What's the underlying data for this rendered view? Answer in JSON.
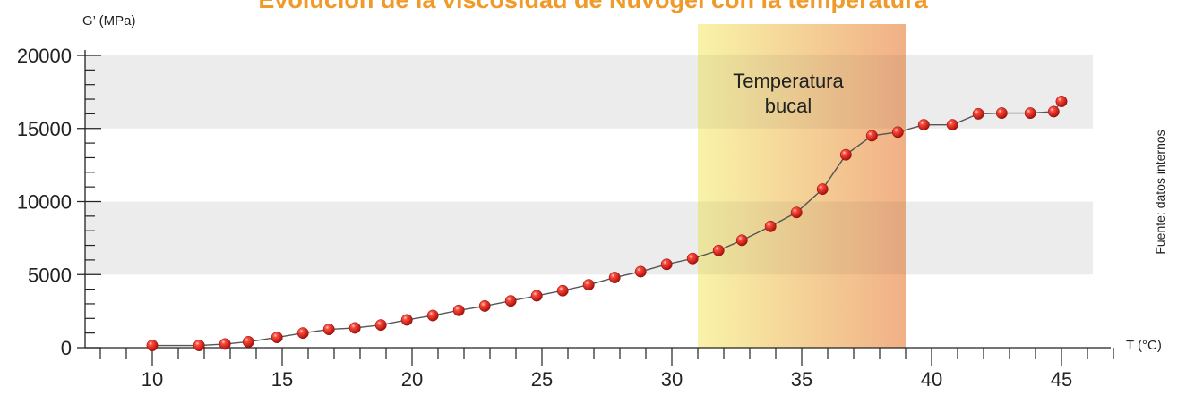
{
  "chart_data": {
    "type": "line",
    "title": "Evolución de la viscosidad de Nuvogel con la temperatura",
    "xlabel": "T (°C)",
    "ylabel": "G’ (MPa)",
    "source_note": "Fuente: datos internos",
    "highlight_band": {
      "label_line1": "Temperatura",
      "label_line2": "bucal",
      "x_start": 31,
      "x_end": 39
    },
    "xlim": [
      8,
      48
    ],
    "ylim": [
      0,
      20000
    ],
    "x_ticks": [
      10,
      15,
      20,
      25,
      30,
      35,
      40,
      45
    ],
    "y_ticks": [
      0,
      5000,
      10000,
      15000,
      20000
    ],
    "grid": "alternating horizontal bands",
    "series": [
      {
        "points": [
          [
            10,
            150
          ],
          [
            11.8,
            150
          ],
          [
            12.8,
            250
          ],
          [
            13.7,
            400
          ],
          [
            14.8,
            700
          ],
          [
            15.8,
            1000
          ],
          [
            16.8,
            1250
          ],
          [
            17.8,
            1350
          ],
          [
            18.8,
            1550
          ],
          [
            19.8,
            1900
          ],
          [
            20.8,
            2200
          ],
          [
            21.8,
            2550
          ],
          [
            22.8,
            2850
          ],
          [
            23.8,
            3200
          ],
          [
            24.8,
            3550
          ],
          [
            25.8,
            3900
          ],
          [
            26.8,
            4300
          ],
          [
            27.8,
            4800
          ],
          [
            28.8,
            5200
          ],
          [
            29.8,
            5700
          ],
          [
            30.8,
            6100
          ],
          [
            31.8,
            6650
          ],
          [
            32.7,
            7350
          ],
          [
            33.8,
            8300
          ],
          [
            34.8,
            9250
          ],
          [
            35.8,
            10850
          ],
          [
            36.7,
            13200
          ],
          [
            37.7,
            14500
          ],
          [
            38.7,
            14750
          ],
          [
            39.7,
            15250
          ],
          [
            40.8,
            15250
          ],
          [
            41.8,
            16000
          ],
          [
            42.7,
            16050
          ],
          [
            43.8,
            16050
          ],
          [
            44.7,
            16150
          ],
          [
            45,
            16850
          ]
        ]
      }
    ],
    "colors": {
      "line": "#555555",
      "marker": "#e0201b",
      "band_light": "#ececec",
      "title": "#f09a2a",
      "highlight_start": "#f8f3a8",
      "highlight_end": "#f1b086"
    }
  }
}
